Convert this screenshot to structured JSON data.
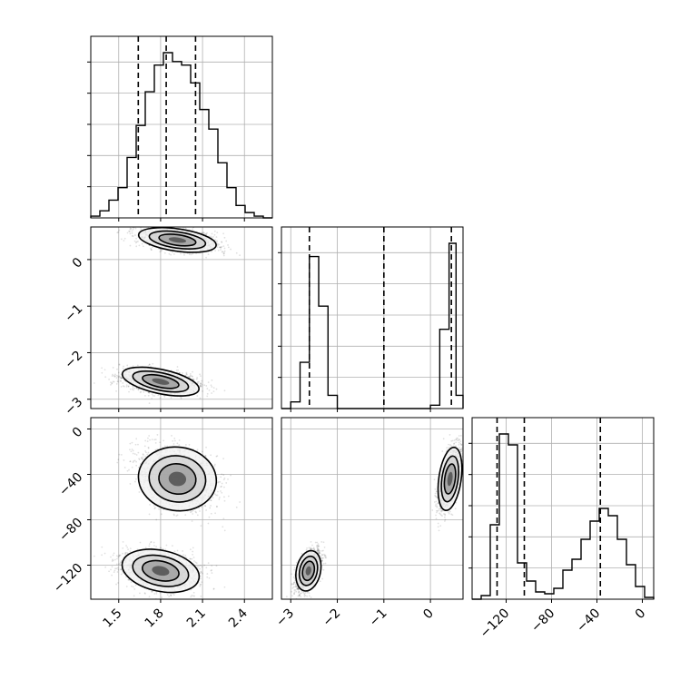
{
  "chart_data": {
    "type": "corner",
    "parameters": [
      "p1",
      "p2",
      "p3"
    ],
    "colors": {
      "line": "#000000",
      "points": "#000000",
      "grid": "#b0b0b0"
    },
    "grid": true,
    "ranges": {
      "p1": [
        1.3,
        2.6
      ],
      "p2": [
        -3.2,
        0.7
      ],
      "p3": [
        -150,
        10
      ]
    },
    "ticks": {
      "p1": [
        {
          "v": 1.5,
          "label": "1.5"
        },
        {
          "v": 1.8,
          "label": "1.8"
        },
        {
          "v": 2.1,
          "label": "2.1"
        },
        {
          "v": 2.4,
          "label": "2.4"
        }
      ],
      "p2": [
        {
          "v": -3,
          "label": "−3"
        },
        {
          "v": -2,
          "label": "−2"
        },
        {
          "v": -1,
          "label": "−1"
        },
        {
          "v": 0,
          "label": "0"
        }
      ],
      "p3": [
        {
          "v": -120,
          "label": "−120"
        },
        {
          "v": -80,
          "label": "−80"
        },
        {
          "v": -40,
          "label": "−40"
        },
        {
          "v": 0,
          "label": "0"
        }
      ]
    },
    "quantiles": {
      "p1": [
        1.64,
        1.84,
        2.05
      ],
      "p2": [
        -2.6,
        -1.0,
        0.45
      ],
      "p3": [
        -128,
        -104,
        -37
      ]
    },
    "histograms": {
      "p1": {
        "edges": [
          1.3,
          1.365,
          1.43,
          1.495,
          1.56,
          1.625,
          1.69,
          1.755,
          1.82,
          1.885,
          1.95,
          2.015,
          2.08,
          2.145,
          2.21,
          2.275,
          2.34,
          2.405,
          2.47,
          2.535,
          2.6
        ],
        "counts": [
          0.01,
          0.04,
          0.1,
          0.17,
          0.34,
          0.52,
          0.71,
          0.86,
          0.93,
          0.88,
          0.86,
          0.76,
          0.61,
          0.5,
          0.31,
          0.17,
          0.07,
          0.03,
          0.01,
          0.0
        ]
      },
      "p2": {
        "edges": [
          -3.2,
          -3.0,
          -2.8,
          -2.6,
          -2.4,
          -2.2,
          -2.0,
          -1.8,
          -1.6,
          -1.4,
          -1.2,
          -1.0,
          -0.8,
          -0.6,
          -0.4,
          -0.2,
          0.0,
          0.2,
          0.4,
          0.55,
          0.7
        ],
        "counts": [
          0.0,
          0.04,
          0.28,
          0.92,
          0.62,
          0.08,
          0.0,
          0.0,
          0.0,
          0.0,
          0.0,
          0.0,
          0.0,
          0.0,
          0.0,
          0.0,
          0.02,
          0.48,
          1.0,
          0.08
        ]
      },
      "p3": {
        "edges": [
          -150,
          -142,
          -134,
          -126,
          -118,
          -110,
          -102,
          -94,
          -86,
          -78,
          -70,
          -62,
          -54,
          -46,
          -38,
          -30,
          -22,
          -14,
          -6,
          2,
          10
        ],
        "counts": [
          0.0,
          0.02,
          0.41,
          0.91,
          0.85,
          0.2,
          0.1,
          0.04,
          0.03,
          0.06,
          0.16,
          0.22,
          0.33,
          0.43,
          0.5,
          0.46,
          0.33,
          0.19,
          0.07,
          0.01
        ]
      }
    },
    "clusters": [
      {
        "mean": [
          1.8,
          -2.62,
          -125
        ],
        "sd": [
          0.14,
          0.13,
          9
        ],
        "weight": 0.5
      },
      {
        "mean": [
          1.92,
          0.42,
          -44
        ],
        "sd": [
          0.14,
          0.12,
          14
        ],
        "weight": 0.5
      }
    ]
  }
}
